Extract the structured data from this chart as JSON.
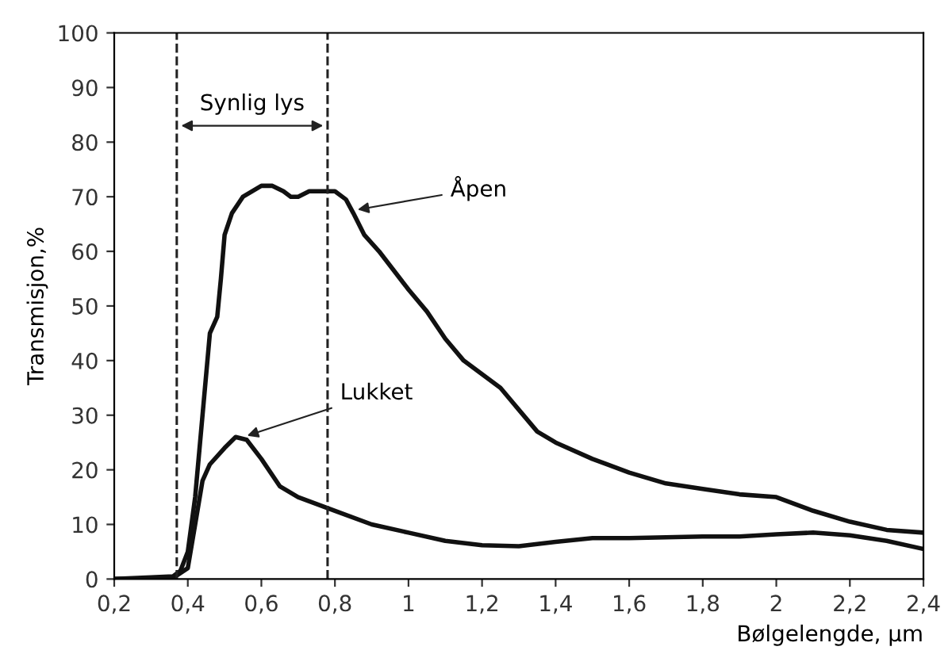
{
  "chart_data": {
    "type": "line",
    "xlabel": "Bølgelengde, µm",
    "ylabel": "Transmisjon,%",
    "xlim": [
      0.2,
      2.4
    ],
    "ylim": [
      0,
      100
    ],
    "xticks": [
      {
        "value": 0.2,
        "label": "0,2"
      },
      {
        "value": 0.4,
        "label": "0,4"
      },
      {
        "value": 0.6,
        "label": "0,6"
      },
      {
        "value": 0.8,
        "label": "0,8"
      },
      {
        "value": 1,
        "label": "1"
      },
      {
        "value": 1.2,
        "label": "1,2"
      },
      {
        "value": 1.4,
        "label": "1,4"
      },
      {
        "value": 1.6,
        "label": "1,6"
      },
      {
        "value": 1.8,
        "label": "1,8"
      },
      {
        "value": 2,
        "label": "2"
      },
      {
        "value": 2.2,
        "label": "2,2"
      },
      {
        "value": 2.4,
        "label": "2,4"
      }
    ],
    "yticks": [
      0,
      10,
      20,
      30,
      40,
      50,
      60,
      70,
      80,
      90,
      100
    ],
    "grid": false,
    "marker": "none",
    "line_style": "solid",
    "series": [
      {
        "color": "#111111",
        "x": [
          0.2,
          0.3,
          0.36,
          0.38,
          0.4,
          0.42,
          0.44,
          0.46,
          0.48,
          0.49,
          0.5,
          0.52,
          0.55,
          0.6,
          0.63,
          0.66,
          0.68,
          0.7,
          0.73,
          0.76,
          0.8,
          0.83,
          0.85,
          0.88,
          0.92,
          1.0,
          1.05,
          1.1,
          1.15,
          1.2,
          1.25,
          1.3,
          1.35,
          1.4,
          1.5,
          1.6,
          1.7,
          1.8,
          1.9,
          2.0,
          2.1,
          2.2,
          2.3,
          2.4
        ],
        "values": [
          0,
          0.3,
          0.5,
          1.5,
          5,
          15,
          30,
          45,
          48,
          55,
          63,
          67,
          70,
          72,
          72,
          71,
          70,
          70,
          71,
          71,
          71,
          69.5,
          67,
          63,
          60,
          53,
          49,
          44,
          40,
          37.5,
          35,
          31,
          27,
          25,
          22,
          19.5,
          17.5,
          16.5,
          15.5,
          15,
          12.5,
          10.5,
          9,
          8.5
        ]
      },
      {
        "color": "#111111",
        "x": [
          0.2,
          0.36,
          0.4,
          0.42,
          0.44,
          0.46,
          0.5,
          0.53,
          0.56,
          0.6,
          0.65,
          0.7,
          0.8,
          0.9,
          1.0,
          1.1,
          1.2,
          1.3,
          1.4,
          1.5,
          1.6,
          1.8,
          1.9,
          2.0,
          2.1,
          2.2,
          2.3,
          2.4
        ],
        "values": [
          0,
          0.2,
          2,
          10,
          18,
          21,
          24,
          26,
          25.5,
          22,
          17,
          15,
          12.5,
          10,
          8.5,
          7,
          6.2,
          6,
          6.8,
          7.5,
          7.5,
          7.8,
          7.8,
          8.2,
          8.5,
          8,
          7,
          5.5
        ]
      }
    ],
    "ref_lines": [
      {
        "axis": "x",
        "value": 0.37,
        "line_style": "dashed"
      },
      {
        "axis": "x",
        "value": 0.78,
        "line_style": "dashed"
      }
    ],
    "annotations": [
      {
        "text": "Åpen",
        "x": 0.85,
        "y": 67.5
      },
      {
        "text": "Lukket",
        "x": 0.55,
        "y": 26
      },
      "Synlig lys"
    ]
  }
}
